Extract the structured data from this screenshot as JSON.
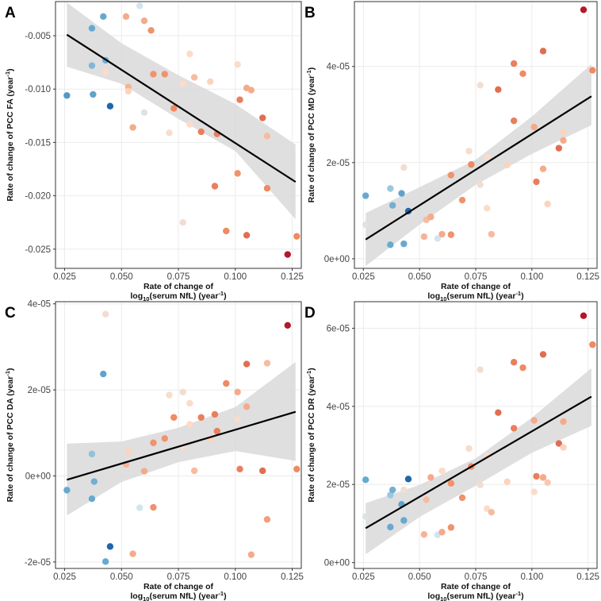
{
  "figure": {
    "x_label_line1": "Rate of change of",
    "x_label_line2_pre": "log",
    "x_label_line2_sub": "10",
    "x_label_line2_post": "(serum NfL) (year",
    "x_label_line2_sup": "-1",
    "x_label_line2_end": ")",
    "colors": {
      "ribbon": "#d9d9d9",
      "fit_line": "#000000",
      "point_scale": [
        "#2166ac",
        "#67a9cf",
        "#d1e5f0",
        "#fddbc7",
        "#ef8a62",
        "#b2182b"
      ]
    }
  },
  "chart_data": [
    {
      "panel": "A",
      "type": "scatter",
      "ylabel_pre": "Rate of change of PCC FA (year",
      "ylabel_sup": "-1",
      "ylabel_post": ")",
      "xlim": [
        0.021,
        0.129
      ],
      "ylim": [
        -0.0268,
        -0.0018
      ],
      "x_ticks": [
        0.025,
        0.05,
        0.075,
        0.1,
        0.125
      ],
      "x_tick_labels": [
        "0.025",
        "0.050",
        "0.075",
        "0.100",
        "0.125"
      ],
      "y_ticks": [
        -0.025,
        -0.02,
        -0.015,
        -0.01,
        -0.005
      ],
      "y_tick_labels": [
        "-0.025",
        "-0.020",
        "-0.015",
        "-0.010",
        "-0.005"
      ],
      "fit": {
        "x": [
          0.026,
          0.1265
        ],
        "y": [
          -0.0049,
          -0.0187
        ]
      },
      "ribbon": {
        "x": [
          0.026,
          0.05,
          0.075,
          0.1,
          0.1265
        ],
        "lower": [
          -0.0079,
          -0.0095,
          -0.0128,
          -0.0158,
          -0.0222
        ],
        "upper": [
          -0.0019,
          -0.0057,
          -0.0087,
          -0.0114,
          -0.0152
        ]
      },
      "points": [
        {
          "x": 0.026,
          "y": -0.0106,
          "c": 0.15
        },
        {
          "x": 0.037,
          "y": -0.0043,
          "c": 0.2
        },
        {
          "x": 0.037,
          "y": -0.0078,
          "c": 0.25
        },
        {
          "x": 0.0375,
          "y": -0.0105,
          "c": 0.18
        },
        {
          "x": 0.042,
          "y": -0.0032,
          "c": 0.2
        },
        {
          "x": 0.043,
          "y": -0.0073,
          "c": 0.22
        },
        {
          "x": 0.043,
          "y": -0.0084,
          "c": 0.6
        },
        {
          "x": 0.045,
          "y": -0.0116,
          "c": 0.0
        },
        {
          "x": 0.052,
          "y": -0.0032,
          "c": 0.72
        },
        {
          "x": 0.053,
          "y": -0.0098,
          "c": 0.7
        },
        {
          "x": 0.053,
          "y": -0.0102,
          "c": 0.62
        },
        {
          "x": 0.055,
          "y": -0.0136,
          "c": 0.72
        },
        {
          "x": 0.058,
          "y": -0.0022,
          "c": 0.4
        },
        {
          "x": 0.06,
          "y": -0.0036,
          "c": 0.72
        },
        {
          "x": 0.06,
          "y": -0.0122,
          "c": 0.45
        },
        {
          "x": 0.063,
          "y": -0.0045,
          "c": 0.78
        },
        {
          "x": 0.064,
          "y": -0.0086,
          "c": 0.78
        },
        {
          "x": 0.069,
          "y": -0.0086,
          "c": 0.78
        },
        {
          "x": 0.071,
          "y": -0.0141,
          "c": 0.58
        },
        {
          "x": 0.073,
          "y": -0.0118,
          "c": 0.8
        },
        {
          "x": 0.077,
          "y": -0.0095,
          "c": 0.6
        },
        {
          "x": 0.077,
          "y": -0.0225,
          "c": 0.55
        },
        {
          "x": 0.08,
          "y": -0.0067,
          "c": 0.6
        },
        {
          "x": 0.08,
          "y": -0.0133,
          "c": 0.6
        },
        {
          "x": 0.082,
          "y": -0.0089,
          "c": 0.68
        },
        {
          "x": 0.085,
          "y": -0.014,
          "c": 0.82
        },
        {
          "x": 0.089,
          "y": -0.0093,
          "c": 0.62
        },
        {
          "x": 0.091,
          "y": -0.0191,
          "c": 0.82
        },
        {
          "x": 0.092,
          "y": -0.0142,
          "c": 0.82
        },
        {
          "x": 0.096,
          "y": -0.0233,
          "c": 0.8
        },
        {
          "x": 0.101,
          "y": -0.0077,
          "c": 0.58
        },
        {
          "x": 0.101,
          "y": -0.0179,
          "c": 0.78
        },
        {
          "x": 0.102,
          "y": -0.011,
          "c": 0.82
        },
        {
          "x": 0.105,
          "y": -0.0237,
          "c": 0.85
        },
        {
          "x": 0.105,
          "y": -0.0099,
          "c": 0.72
        },
        {
          "x": 0.107,
          "y": -0.0101,
          "c": 0.72
        },
        {
          "x": 0.112,
          "y": -0.0127,
          "c": 0.85
        },
        {
          "x": 0.114,
          "y": -0.0144,
          "c": 0.68
        },
        {
          "x": 0.114,
          "y": -0.0193,
          "c": 0.8
        },
        {
          "x": 0.123,
          "y": -0.0255,
          "c": 1.0
        },
        {
          "x": 0.127,
          "y": -0.0238,
          "c": 0.8
        }
      ]
    },
    {
      "panel": "B",
      "type": "scatter",
      "ylabel_pre": "Rate of change of PCC MD (year",
      "ylabel_sup": "-1",
      "ylabel_post": ")",
      "xlim": [
        0.021,
        0.129
      ],
      "ylim": [
        -2e-06,
        5.35e-05
      ],
      "x_ticks": [
        0.025,
        0.05,
        0.075,
        0.1,
        0.125
      ],
      "x_tick_labels": [
        "0.025",
        "0.050",
        "0.075",
        "0.100",
        "0.125"
      ],
      "y_ticks": [
        0,
        2e-05,
        4e-05
      ],
      "y_tick_labels": [
        "0e+00",
        "2e-05",
        "4e-05"
      ],
      "fit": {
        "x": [
          0.026,
          0.1265
        ],
        "y": [
          4e-06,
          3.38e-05
        ]
      },
      "ribbon": {
        "x": [
          0.026,
          0.05,
          0.075,
          0.1,
          0.1265
        ],
        "lower": [
          -1.5e-06,
          7.1e-06,
          1.54e-05,
          2.18e-05,
          2.78e-05
        ],
        "upper": [
          9.5e-06,
          1.49e-05,
          2.06e-05,
          2.96e-05,
          4.05e-05
        ]
      },
      "points": [
        {
          "x": 0.026,
          "y": 1.31e-05,
          "c": 0.2
        },
        {
          "x": 0.026,
          "y": 7.1e-06,
          "c": 0.45
        },
        {
          "x": 0.037,
          "y": 1.46e-05,
          "c": 0.3
        },
        {
          "x": 0.037,
          "y": 2.9e-06,
          "c": 0.2
        },
        {
          "x": 0.038,
          "y": 1.11e-05,
          "c": 0.22
        },
        {
          "x": 0.042,
          "y": 1.36e-05,
          "c": 0.18
        },
        {
          "x": 0.043,
          "y": 1.9e-05,
          "c": 0.55
        },
        {
          "x": 0.043,
          "y": 3.1e-06,
          "c": 0.2
        },
        {
          "x": 0.045,
          "y": 9.9e-06,
          "c": 0.0
        },
        {
          "x": 0.052,
          "y": 4.6e-06,
          "c": 0.7
        },
        {
          "x": 0.053,
          "y": 8.1e-06,
          "c": 0.68
        },
        {
          "x": 0.055,
          "y": 8.7e-06,
          "c": 0.72
        },
        {
          "x": 0.058,
          "y": 4.2e-06,
          "c": 0.4
        },
        {
          "x": 0.06,
          "y": 5.1e-06,
          "c": 0.72
        },
        {
          "x": 0.064,
          "y": 1.74e-05,
          "c": 0.78
        },
        {
          "x": 0.064,
          "y": 5e-06,
          "c": 0.78
        },
        {
          "x": 0.069,
          "y": 1.22e-05,
          "c": 0.78
        },
        {
          "x": 0.072,
          "y": 2.24e-05,
          "c": 0.58
        },
        {
          "x": 0.073,
          "y": 1.96e-05,
          "c": 0.8
        },
        {
          "x": 0.077,
          "y": 3.61e-05,
          "c": 0.55
        },
        {
          "x": 0.077,
          "y": 1.54e-05,
          "c": 0.55
        },
        {
          "x": 0.08,
          "y": 1.05e-05,
          "c": 0.6
        },
        {
          "x": 0.08,
          "y": 2.11e-05,
          "c": 0.58
        },
        {
          "x": 0.082,
          "y": 5.1e-06,
          "c": 0.68
        },
        {
          "x": 0.085,
          "y": 3.52e-05,
          "c": 0.85
        },
        {
          "x": 0.089,
          "y": 1.95e-05,
          "c": 0.62
        },
        {
          "x": 0.092,
          "y": 4.06e-05,
          "c": 0.82
        },
        {
          "x": 0.092,
          "y": 2.87e-05,
          "c": 0.82
        },
        {
          "x": 0.096,
          "y": 3.85e-05,
          "c": 0.8
        },
        {
          "x": 0.101,
          "y": 2.74e-05,
          "c": 0.72
        },
        {
          "x": 0.102,
          "y": 1.6e-05,
          "c": 0.82
        },
        {
          "x": 0.105,
          "y": 4.32e-05,
          "c": 0.85
        },
        {
          "x": 0.105,
          "y": 1.87e-05,
          "c": 0.72
        },
        {
          "x": 0.107,
          "y": 1.14e-05,
          "c": 0.62
        },
        {
          "x": 0.112,
          "y": 2.3e-05,
          "c": 0.85
        },
        {
          "x": 0.114,
          "y": 2.46e-05,
          "c": 0.72
        },
        {
          "x": 0.114,
          "y": 2.63e-05,
          "c": 0.62
        },
        {
          "x": 0.123,
          "y": 5.18e-05,
          "c": 1.0
        },
        {
          "x": 0.127,
          "y": 3.92e-05,
          "c": 0.8
        }
      ]
    },
    {
      "panel": "C",
      "type": "scatter",
      "ylabel_pre": "Rate of change of PCC DA (year",
      "ylabel_sup": "-1",
      "ylabel_post": ")",
      "xlim": [
        0.021,
        0.129
      ],
      "ylim": [
        -2.15e-05,
        4.05e-05
      ],
      "x_ticks": [
        0.025,
        0.05,
        0.075,
        0.1,
        0.125
      ],
      "x_tick_labels": [
        "0.025",
        "0.050",
        "0.075",
        "0.100",
        "0.125"
      ],
      "y_ticks": [
        -2e-05,
        0,
        2e-05,
        4e-05
      ],
      "y_tick_labels": [
        "-2e-05",
        "0e+00",
        "2e-05",
        "4e-05"
      ],
      "fit": {
        "x": [
          0.026,
          0.1265
        ],
        "y": [
          -9e-07,
          1.49e-05
        ]
      },
      "ribbon": {
        "x": [
          0.026,
          0.05,
          0.075,
          0.1,
          0.1265
        ],
        "lower": [
          -9.2e-06,
          -1.4e-06,
          3.2e-06,
          5.8e-06,
          3.5e-06
        ],
        "upper": [
          7.5e-06,
          8e-06,
          1.12e-05,
          1.6e-05,
          2.65e-05
        ]
      },
      "points": [
        {
          "x": 0.026,
          "y": -3.3e-06,
          "c": 0.2
        },
        {
          "x": 0.037,
          "y": 5.1e-06,
          "c": 0.28
        },
        {
          "x": 0.037,
          "y": -5.3e-06,
          "c": 0.2
        },
        {
          "x": 0.038,
          "y": -1.3e-06,
          "c": 0.22
        },
        {
          "x": 0.042,
          "y": 2.37e-05,
          "c": 0.18
        },
        {
          "x": 0.043,
          "y": 3.76e-05,
          "c": 0.55
        },
        {
          "x": 0.043,
          "y": -1.99e-05,
          "c": 0.2
        },
        {
          "x": 0.045,
          "y": -1.64e-05,
          "c": 0.0
        },
        {
          "x": 0.052,
          "y": 2.7e-06,
          "c": 0.7
        },
        {
          "x": 0.053,
          "y": 5.7e-06,
          "c": 0.62
        },
        {
          "x": 0.055,
          "y": -1.81e-05,
          "c": 0.72
        },
        {
          "x": 0.058,
          "y": -7.4e-06,
          "c": 0.4
        },
        {
          "x": 0.06,
          "y": 1.1e-06,
          "c": 0.72
        },
        {
          "x": 0.064,
          "y": 7.7e-06,
          "c": 0.78
        },
        {
          "x": 0.064,
          "y": -7.3e-06,
          "c": 0.78
        },
        {
          "x": 0.069,
          "y": 8.7e-06,
          "c": 0.78
        },
        {
          "x": 0.071,
          "y": 1.88e-05,
          "c": 0.58
        },
        {
          "x": 0.073,
          "y": 1.36e-05,
          "c": 0.8
        },
        {
          "x": 0.077,
          "y": 1.95e-05,
          "c": 0.55
        },
        {
          "x": 0.077,
          "y": 6.7e-06,
          "c": 0.55
        },
        {
          "x": 0.08,
          "y": 1.69e-05,
          "c": 0.58
        },
        {
          "x": 0.08,
          "y": 1.2e-05,
          "c": 0.6
        },
        {
          "x": 0.082,
          "y": 1.2e-06,
          "c": 0.68
        },
        {
          "x": 0.085,
          "y": 1.36e-05,
          "c": 0.82
        },
        {
          "x": 0.089,
          "y": 8.6e-06,
          "c": 0.62
        },
        {
          "x": 0.091,
          "y": 1.43e-05,
          "c": 0.82
        },
        {
          "x": 0.092,
          "y": 1.04e-05,
          "c": 0.82
        },
        {
          "x": 0.096,
          "y": 2.15e-05,
          "c": 0.8
        },
        {
          "x": 0.101,
          "y": 1.95e-05,
          "c": 0.72
        },
        {
          "x": 0.101,
          "y": 1.31e-05,
          "c": 0.58
        },
        {
          "x": 0.102,
          "y": 1.6e-06,
          "c": 0.82
        },
        {
          "x": 0.105,
          "y": 2.6e-05,
          "c": 0.85
        },
        {
          "x": 0.105,
          "y": 1.61e-05,
          "c": 0.72
        },
        {
          "x": 0.107,
          "y": -1.83e-05,
          "c": 0.72
        },
        {
          "x": 0.112,
          "y": 1.2e-06,
          "c": 0.85
        },
        {
          "x": 0.114,
          "y": 2.62e-05,
          "c": 0.68
        },
        {
          "x": 0.114,
          "y": -1.01e-05,
          "c": 0.75
        },
        {
          "x": 0.123,
          "y": 3.5e-05,
          "c": 1.0
        },
        {
          "x": 0.127,
          "y": 1.6e-06,
          "c": 0.8
        }
      ]
    },
    {
      "panel": "D",
      "type": "scatter",
      "ylabel_pre": "Rate of change of PCC DR (year",
      "ylabel_sup": "-1",
      "ylabel_post": ")",
      "xlim": [
        0.021,
        0.129
      ],
      "ylim": [
        -1.5e-06,
        6.68e-05
      ],
      "x_ticks": [
        0.025,
        0.05,
        0.075,
        0.1,
        0.125
      ],
      "x_tick_labels": [
        "0.025",
        "0.050",
        "0.075",
        "0.100",
        "0.125"
      ],
      "y_ticks": [
        0,
        2e-05,
        4e-05,
        6e-05
      ],
      "y_tick_labels": [
        "0e+00",
        "2e-05",
        "4e-05",
        "6e-05"
      ],
      "fit": {
        "x": [
          0.026,
          0.1265
        ],
        "y": [
          8.8e-06,
          4.25e-05
        ]
      },
      "ribbon": {
        "x": [
          0.026,
          0.05,
          0.075,
          0.1,
          0.1265
        ],
        "lower": [
          2.1e-06,
          1.17e-05,
          1.97e-05,
          2.81e-05,
          3.5e-05
        ],
        "upper": [
          1.52e-05,
          1.99e-05,
          2.67e-05,
          3.71e-05,
          4.98e-05
        ]
      },
      "points": [
        {
          "x": 0.026,
          "y": 2.12e-05,
          "c": 0.2
        },
        {
          "x": 0.026,
          "y": 1.18e-05,
          "c": 0.45
        },
        {
          "x": 0.037,
          "y": 1.73e-05,
          "c": 0.3
        },
        {
          "x": 0.037,
          "y": 9.1e-06,
          "c": 0.2
        },
        {
          "x": 0.038,
          "y": 1.86e-05,
          "c": 0.22
        },
        {
          "x": 0.042,
          "y": 1.49e-05,
          "c": 0.18
        },
        {
          "x": 0.043,
          "y": 1.86e-05,
          "c": 0.55
        },
        {
          "x": 0.043,
          "y": 1.08e-05,
          "c": 0.2
        },
        {
          "x": 0.045,
          "y": 2.14e-05,
          "c": 0.0
        },
        {
          "x": 0.052,
          "y": 7.2e-06,
          "c": 0.7
        },
        {
          "x": 0.053,
          "y": 1.61e-05,
          "c": 0.68
        },
        {
          "x": 0.055,
          "y": 2.18e-05,
          "c": 0.72
        },
        {
          "x": 0.058,
          "y": 7.1e-06,
          "c": 0.4
        },
        {
          "x": 0.06,
          "y": 2.35e-05,
          "c": 0.6
        },
        {
          "x": 0.06,
          "y": 7.8e-06,
          "c": 0.72
        },
        {
          "x": 0.064,
          "y": 2.03e-05,
          "c": 0.78
        },
        {
          "x": 0.064,
          "y": 9e-06,
          "c": 0.78
        },
        {
          "x": 0.069,
          "y": 1.66e-05,
          "c": 0.78
        },
        {
          "x": 0.072,
          "y": 2.92e-05,
          "c": 0.58
        },
        {
          "x": 0.073,
          "y": 2.46e-05,
          "c": 0.8
        },
        {
          "x": 0.077,
          "y": 4.94e-05,
          "c": 0.55
        },
        {
          "x": 0.077,
          "y": 1.99e-05,
          "c": 0.55
        },
        {
          "x": 0.08,
          "y": 1.38e-05,
          "c": 0.6
        },
        {
          "x": 0.08,
          "y": 2.74e-05,
          "c": 0.58
        },
        {
          "x": 0.082,
          "y": 1.29e-05,
          "c": 0.68
        },
        {
          "x": 0.085,
          "y": 3.84e-05,
          "c": 0.85
        },
        {
          "x": 0.089,
          "y": 2.07e-05,
          "c": 0.62
        },
        {
          "x": 0.092,
          "y": 5.13e-05,
          "c": 0.82
        },
        {
          "x": 0.092,
          "y": 3.44e-05,
          "c": 0.82
        },
        {
          "x": 0.096,
          "y": 4.99e-05,
          "c": 0.8
        },
        {
          "x": 0.101,
          "y": 3.64e-05,
          "c": 0.72
        },
        {
          "x": 0.101,
          "y": 1.81e-05,
          "c": 0.58
        },
        {
          "x": 0.102,
          "y": 2.21e-05,
          "c": 0.82
        },
        {
          "x": 0.105,
          "y": 5.33e-05,
          "c": 0.85
        },
        {
          "x": 0.105,
          "y": 2.18e-05,
          "c": 0.72
        },
        {
          "x": 0.107,
          "y": 2.05e-05,
          "c": 0.65
        },
        {
          "x": 0.112,
          "y": 3.05e-05,
          "c": 0.85
        },
        {
          "x": 0.114,
          "y": 3.61e-05,
          "c": 0.72
        },
        {
          "x": 0.114,
          "y": 2.95e-05,
          "c": 0.62
        },
        {
          "x": 0.123,
          "y": 6.32e-05,
          "c": 1.0
        },
        {
          "x": 0.127,
          "y": 5.58e-05,
          "c": 0.8
        }
      ]
    }
  ]
}
